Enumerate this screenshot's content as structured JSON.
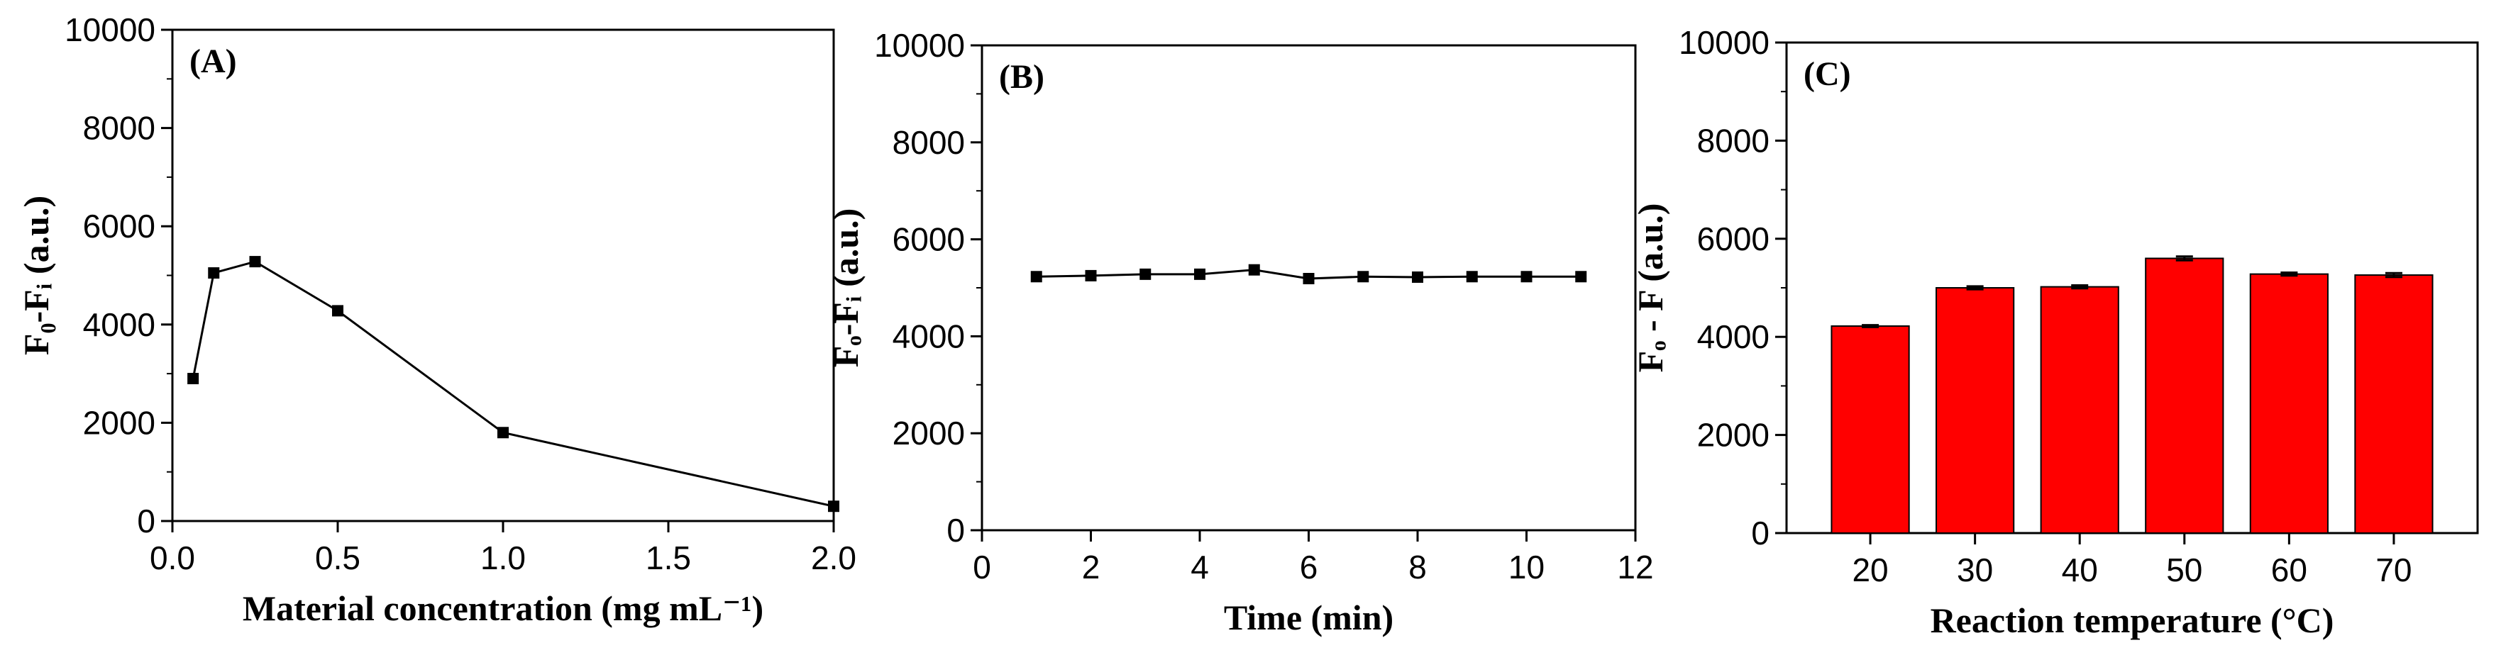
{
  "chart_data": [
    {
      "type": "line",
      "panel_label": "(A)",
      "xlabel": "Material concentration (mg mL⁻¹)",
      "ylabel": "F₀-Fᵢ (a.u.)",
      "xlim": [
        0,
        2.0
      ],
      "ylim": [
        0,
        10000
      ],
      "xticks": [
        "0.0",
        "0.5",
        "1.0",
        "1.5",
        "2.0"
      ],
      "yticks": [
        "0",
        "2000",
        "4000",
        "6000",
        "8000",
        "10000"
      ],
      "grid": false,
      "series": [
        {
          "x": [
            0.0625,
            0.125,
            0.25,
            0.5,
            1.0,
            2.0
          ],
          "values": [
            2900,
            5050,
            5280,
            4280,
            1800,
            300
          ]
        }
      ]
    },
    {
      "type": "line",
      "panel_label": "(B)",
      "xlabel": "Time (min)",
      "ylabel": "Fₒ-Fᵢ (a.u.)",
      "xlim": [
        0,
        12
      ],
      "ylim": [
        0,
        10000
      ],
      "xticks": [
        "0",
        "2",
        "4",
        "6",
        "8",
        "10",
        "12"
      ],
      "yticks": [
        "0",
        "2000",
        "4000",
        "6000",
        "8000",
        "10000"
      ],
      "grid": false,
      "series": [
        {
          "x": [
            1,
            2,
            3,
            4,
            5,
            6,
            7,
            8,
            9,
            10,
            11
          ],
          "values": [
            5230,
            5250,
            5280,
            5280,
            5370,
            5190,
            5230,
            5220,
            5230,
            5230,
            5230
          ]
        }
      ]
    },
    {
      "type": "bar",
      "panel_label": "(C)",
      "xlabel": "Reaction temperature (°C)",
      "ylabel": "Fₒ - F (a.u.)",
      "ylim": [
        0,
        10000
      ],
      "yticks": [
        "0",
        "2000",
        "4000",
        "6000",
        "8000",
        "10000"
      ],
      "grid": false,
      "categories": [
        "20",
        "30",
        "40",
        "50",
        "60",
        "70"
      ],
      "series": [
        {
          "values": [
            4220,
            5000,
            5020,
            5600,
            5280,
            5260
          ],
          "errors": [
            20,
            30,
            30,
            40,
            30,
            40
          ]
        }
      ],
      "colors": {
        "bar": "#ff0000"
      }
    }
  ]
}
